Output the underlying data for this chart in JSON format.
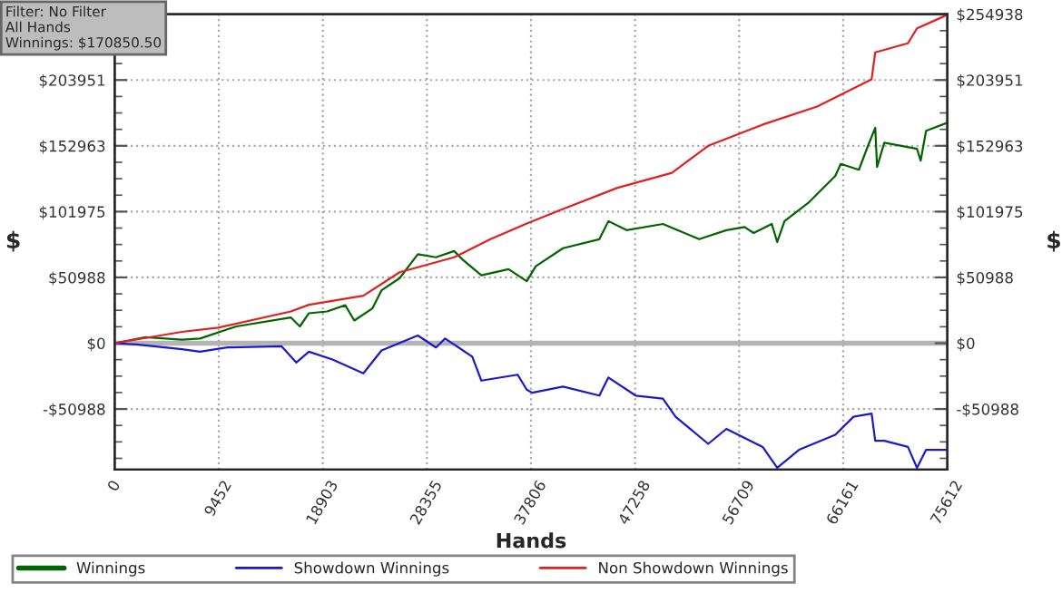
{
  "chart_data": {
    "type": "line",
    "xlabel": "Hands",
    "ylabel": "$",
    "y2label": "$",
    "annotations": [
      "Filter: No Filter\nAll Hands\nWinnings: $170850.50"
    ],
    "series": [
      {
        "name": "Winnings",
        "color": "#006400",
        "x": [
          0,
          2802,
          6099,
          7747,
          11044,
          15990,
          16814,
          17638,
          19286,
          20935,
          21759,
          23407,
          24231,
          25880,
          27528,
          29177,
          30825,
          31649,
          33298,
          35770,
          37419,
          38243,
          40715,
          44012,
          44837,
          46485,
          49782,
          53078,
          55551,
          57199,
          58024,
          59672,
          60166,
          60826,
          62969,
          65442,
          65936,
          67585,
          68409,
          69068,
          69233,
          69892,
          72860,
          73190,
          73685,
          75612
        ],
        "values": [
          0,
          4600,
          2800,
          3600,
          13000,
          20000,
          13000,
          23200,
          24600,
          29400,
          17600,
          27000,
          41000,
          50400,
          69000,
          66600,
          71400,
          64400,
          52600,
          57400,
          48000,
          59600,
          73600,
          80600,
          94600,
          87600,
          92400,
          80600,
          87600,
          90000,
          85400,
          92400,
          78400,
          94600,
          108600,
          129600,
          139000,
          134400,
          153000,
          167000,
          136600,
          155400,
          150600,
          141400,
          164600,
          170850
        ]
      },
      {
        "name": "Showdown Winnings",
        "color": "#1a1acc",
        "x": [
          0,
          1978,
          6099,
          7747,
          10220,
          15165,
          16484,
          17638,
          19781,
          22583,
          24231,
          27528,
          29177,
          30001,
          32473,
          33298,
          36594,
          37419,
          37913,
          40715,
          44012,
          44837,
          47309,
          49782,
          50936,
          53903,
          55551,
          58848,
          60166,
          62145,
          65442,
          67090,
          68738,
          69068,
          69892,
          72036,
          72860,
          73685,
          75612
        ],
        "values": [
          0,
          -1000,
          -4700,
          -6600,
          -3300,
          -2400,
          -15000,
          -6600,
          -12600,
          -23400,
          -5600,
          6000,
          -3300,
          3600,
          -10400,
          -29000,
          -24400,
          -36000,
          -38400,
          -33600,
          -40600,
          -26600,
          -40600,
          -43000,
          -57000,
          -78000,
          -66400,
          -80400,
          -96600,
          -82600,
          -71000,
          -57000,
          -54600,
          -75600,
          -75600,
          -80400,
          -96600,
          -82600,
          -82600
        ]
      },
      {
        "name": "Non Showdown Winnings",
        "color": "#e02020",
        "x": [
          0,
          6099,
          9396,
          15990,
          17638,
          22583,
          25880,
          30825,
          34122,
          37419,
          40715,
          45661,
          50606,
          53903,
          58848,
          63793,
          67090,
          68738,
          69068,
          72036,
          72860,
          75332,
          75612
        ],
        "values": [
          0,
          8800,
          12000,
          24600,
          29800,
          36800,
          55000,
          66600,
          80600,
          92700,
          104000,
          120400,
          132000,
          153000,
          169400,
          183400,
          197400,
          204400,
          225400,
          232400,
          244000,
          253400,
          254938
        ]
      }
    ],
    "xlim": [
      0,
      75612
    ],
    "xticks": [
      0,
      9452,
      18903,
      28355,
      37806,
      47258,
      56709,
      66161,
      75612
    ],
    "ylim": [
      -98000,
      254938
    ],
    "yticks": [
      {
        "value": -50988,
        "label": "-$50988"
      },
      {
        "value": 0,
        "label": "$0"
      },
      {
        "value": 50988,
        "label": "$50988"
      },
      {
        "value": 101975,
        "label": "$101975"
      },
      {
        "value": 152963,
        "label": "$152963"
      },
      {
        "value": 203951,
        "label": "$203951"
      },
      {
        "value": 254938,
        "label": null
      }
    ],
    "y2lim": [
      -98000,
      254938
    ],
    "y2ticks": [
      {
        "value": -50988,
        "label": "-$50988"
      },
      {
        "value": 0,
        "label": "$0"
      },
      {
        "value": 50988,
        "label": "$50988"
      },
      {
        "value": 101975,
        "label": "$101975"
      },
      {
        "value": 152963,
        "label": "$152963"
      },
      {
        "value": 203951,
        "label": "$203951"
      },
      {
        "value": 254938,
        "label": "$254938"
      }
    ],
    "ref_lines": [
      {
        "axis": "y",
        "value": 0,
        "color": "#b4b4b4",
        "line_style": "solid"
      }
    ],
    "grid": true,
    "legend": "bottom",
    "marker": "none",
    "line_style": "solid"
  }
}
